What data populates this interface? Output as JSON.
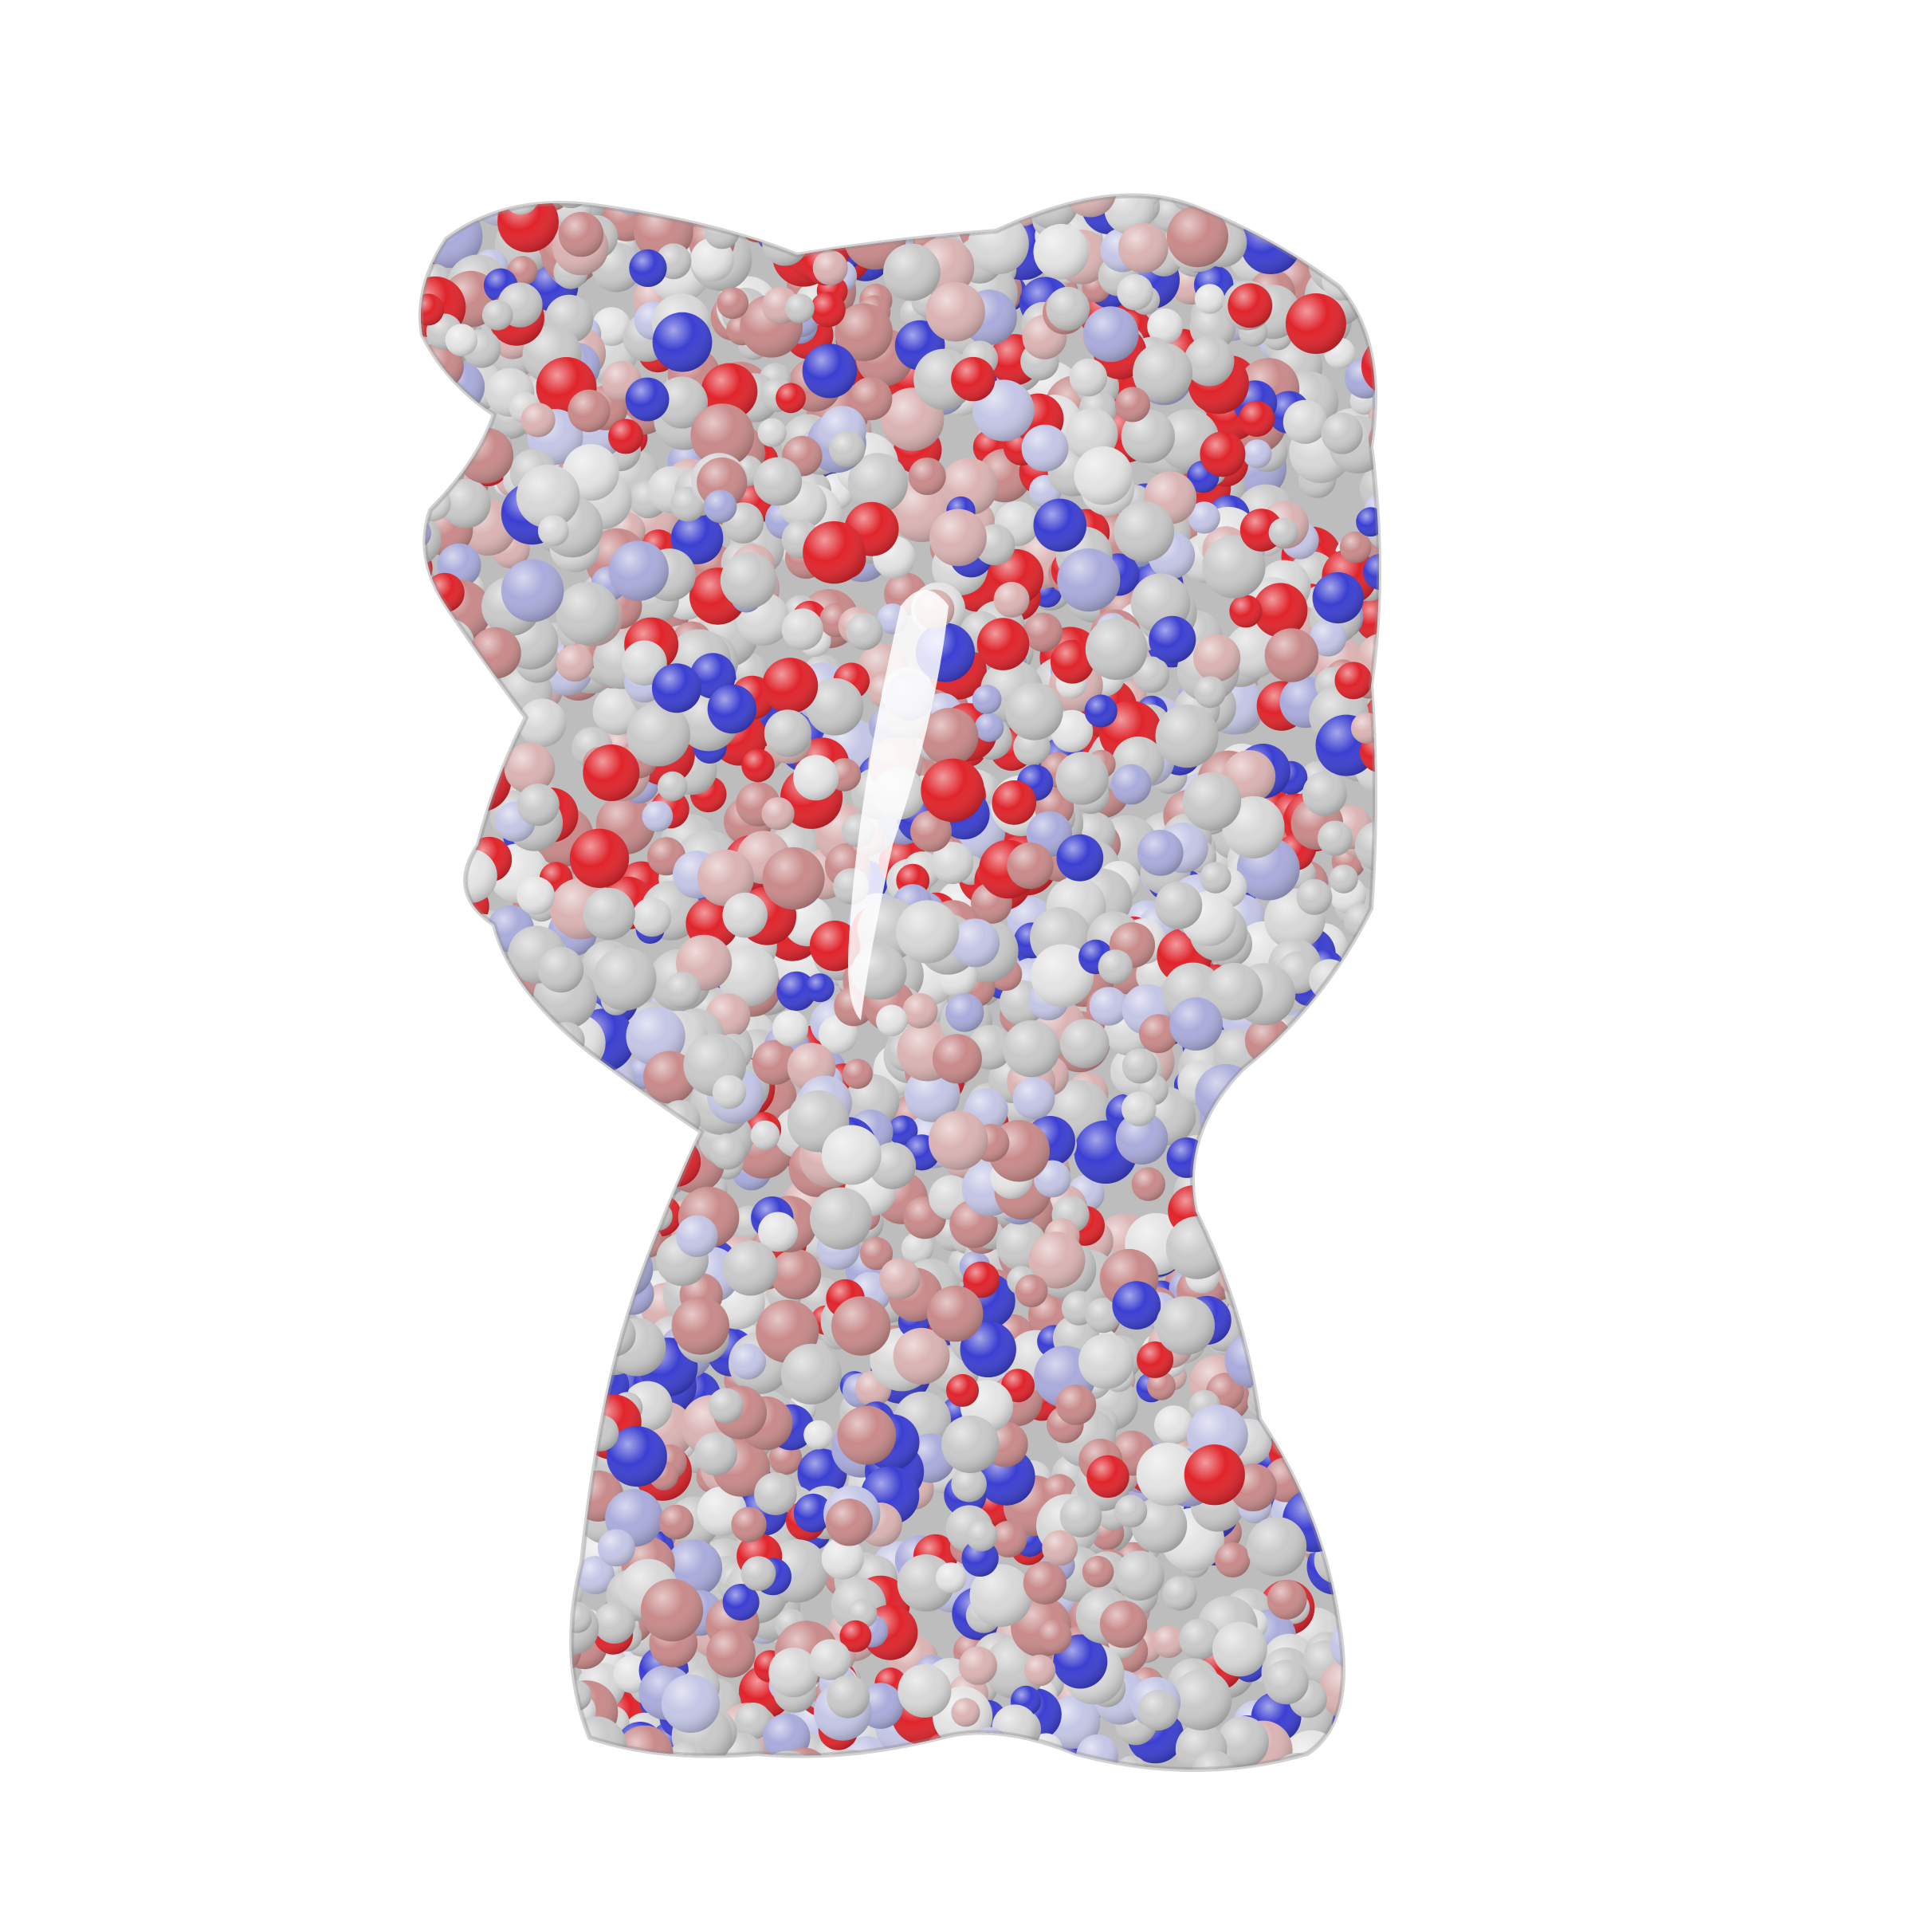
{
  "image": {
    "subject": "protein-surface",
    "style": "space-filling molecular surface rendering",
    "background": "#ffffff",
    "colors": {
      "neutral": "#c9c9c9",
      "negative": "#e0242b",
      "positive": "#3b3fd1",
      "weak_negative": "#c98a8a",
      "weak_positive": "#a9abdb"
    }
  }
}
